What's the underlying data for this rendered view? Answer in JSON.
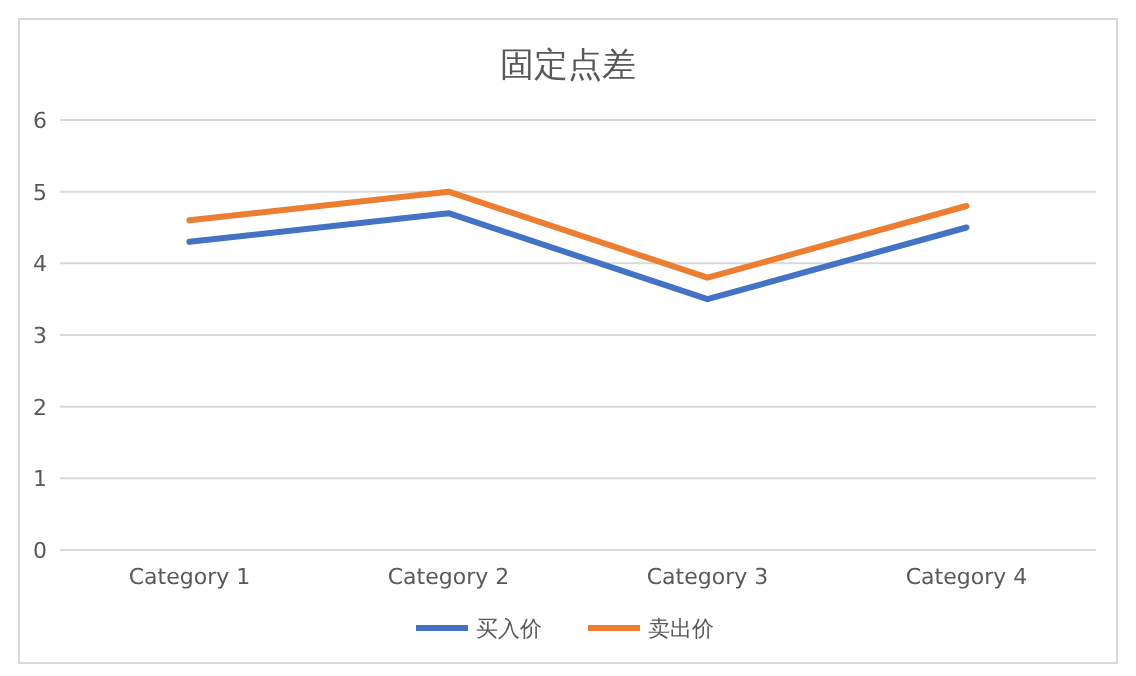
{
  "chart_data": {
    "type": "line",
    "title": "固定点差",
    "categories": [
      "Category 1",
      "Category 2",
      "Category 3",
      "Category 4"
    ],
    "series": [
      {
        "name": "买入价",
        "color": "#4472c4",
        "values": [
          4.3,
          4.7,
          3.5,
          4.5
        ]
      },
      {
        "name": "卖出价",
        "color": "#ed7d31",
        "values": [
          4.6,
          5.0,
          3.8,
          4.8
        ]
      }
    ],
    "ylim": [
      0,
      6
    ],
    "yticks": [
      0,
      1,
      2,
      3,
      4,
      5,
      6
    ],
    "grid": "y",
    "legend": "bottom"
  }
}
